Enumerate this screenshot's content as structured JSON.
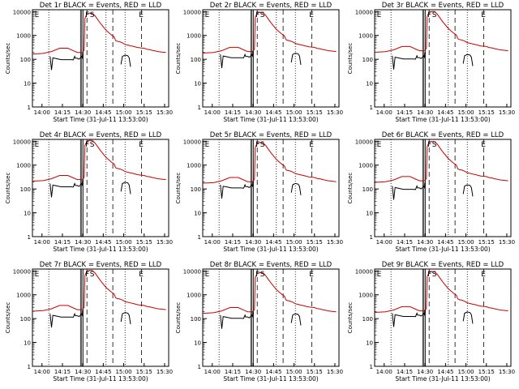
{
  "chart_data": [
    {
      "type": "line",
      "title": "Det 1r BLACK = Events, RED = LLD",
      "ylabel": "Counts/sec",
      "xlabel": "Start Time (31-Jul-11 13:53:00)",
      "x_ticks": [
        "14:00",
        "14:15",
        "14:30",
        "14:45",
        "15:00",
        "15:15",
        "15:30"
      ],
      "x_range_min": [
        -7,
        100
      ],
      "y_ticks": [
        "1",
        "10",
        "100",
        "1000",
        "10000"
      ],
      "y_scale": "log",
      "ylim": [
        1,
        12000
      ],
      "markers": [
        "E",
        "F",
        "S",
        "E"
      ],
      "series": [
        {
          "name": "BLACK = Events",
          "color": "#000000"
        },
        {
          "name": "RED = LLD",
          "color": "#cc0000"
        }
      ]
    },
    {
      "type": "line",
      "title": "Det 2r BLACK = Events, RED = LLD",
      "ylabel": "Counts/sec",
      "xlabel": "Start Time (31-Jul-11 13:53:00)",
      "x_ticks": [
        "14:00",
        "14:15",
        "14:30",
        "14:45",
        "15:00",
        "15:15",
        "15:30"
      ],
      "x_range_min": [
        -7,
        100
      ],
      "y_ticks": [
        "1",
        "10",
        "100",
        "1000",
        "10000"
      ],
      "y_scale": "log",
      "ylim": [
        1,
        12000
      ],
      "markers": [
        "E",
        "F",
        "S",
        "E"
      ],
      "series": [
        {
          "name": "BLACK = Events",
          "color": "#000000"
        },
        {
          "name": "RED = LLD",
          "color": "#cc0000"
        }
      ]
    },
    {
      "type": "line",
      "title": "Det 3r BLACK = Events, RED = LLD",
      "ylabel": "Counts/sec",
      "xlabel": "Start Time (31-Jul-11 13:53:00)",
      "x_ticks": [
        "14:00",
        "14:15",
        "14:30",
        "14:45",
        "15:00",
        "15:15",
        "15:30"
      ],
      "x_range_min": [
        -7,
        100
      ],
      "y_ticks": [
        "1",
        "10",
        "100",
        "1000",
        "10000"
      ],
      "y_scale": "log",
      "ylim": [
        1,
        12000
      ],
      "markers": [
        "E",
        "F",
        "S",
        "E"
      ],
      "series": [
        {
          "name": "BLACK = Events",
          "color": "#000000"
        },
        {
          "name": "RED = LLD",
          "color": "#cc0000"
        }
      ]
    },
    {
      "type": "line",
      "title": "Det 4r BLACK = Events, RED = LLD",
      "ylabel": "Counts/sec",
      "xlabel": "Start Time (31-Jul-11 13:53:00)",
      "x_ticks": [
        "14:00",
        "14:15",
        "14:30",
        "14:45",
        "15:00",
        "15:15",
        "15:30"
      ],
      "x_range_min": [
        -7,
        100
      ],
      "y_ticks": [
        "1",
        "10",
        "100",
        "1000",
        "10000"
      ],
      "y_scale": "log",
      "ylim": [
        1,
        12000
      ],
      "markers": [
        "E",
        "F",
        "S",
        "E"
      ],
      "series": [
        {
          "name": "BLACK = Events",
          "color": "#000000"
        },
        {
          "name": "RED = LLD",
          "color": "#cc0000"
        }
      ]
    },
    {
      "type": "line",
      "title": "Det 5r BLACK = Events, RED = LLD",
      "ylabel": "Counts/sec",
      "xlabel": "Start Time (31-Jul-11 13:53:00)",
      "x_ticks": [
        "14:00",
        "14:15",
        "14:30",
        "14:45",
        "15:00",
        "15:15",
        "15:30"
      ],
      "x_range_min": [
        -7,
        100
      ],
      "y_ticks": [
        "1",
        "10",
        "100",
        "1000",
        "10000"
      ],
      "y_scale": "log",
      "ylim": [
        1,
        12000
      ],
      "markers": [
        "E",
        "F",
        "S",
        "E"
      ],
      "series": [
        {
          "name": "BLACK = Events",
          "color": "#000000"
        },
        {
          "name": "RED = LLD",
          "color": "#cc0000"
        }
      ]
    },
    {
      "type": "line",
      "title": "Det 6r BLACK = Events, RED = LLD",
      "ylabel": "Counts/sec",
      "xlabel": "Start Time (31-Jul-11 13:53:00)",
      "x_ticks": [
        "14:00",
        "14:15",
        "14:30",
        "14:45",
        "15:00",
        "15:15",
        "15:30"
      ],
      "x_range_min": [
        -7,
        100
      ],
      "y_ticks": [
        "1",
        "10",
        "100",
        "1000",
        "10000"
      ],
      "y_scale": "log",
      "ylim": [
        1,
        12000
      ],
      "markers": [
        "E",
        "F",
        "S",
        "E"
      ],
      "series": [
        {
          "name": "BLACK = Events",
          "color": "#000000"
        },
        {
          "name": "RED = LLD",
          "color": "#cc0000"
        }
      ]
    },
    {
      "type": "line",
      "title": "Det 7r BLACK = Events, RED = LLD",
      "ylabel": "Counts/sec",
      "xlabel": "Start Time (31-Jul-11 13:53:00)",
      "x_ticks": [
        "14:00",
        "14:15",
        "14:30",
        "14:45",
        "15:00",
        "15:15",
        "15:30"
      ],
      "x_range_min": [
        -7,
        100
      ],
      "y_ticks": [
        "1",
        "10",
        "100",
        "1000",
        "10000"
      ],
      "y_scale": "log",
      "ylim": [
        1,
        12000
      ],
      "markers": [
        "E",
        "F",
        "S",
        "E"
      ],
      "series": [
        {
          "name": "BLACK = Events",
          "color": "#000000"
        },
        {
          "name": "RED = LLD",
          "color": "#cc0000"
        }
      ]
    },
    {
      "type": "line",
      "title": "Det 8r BLACK = Events, RED = LLD",
      "ylabel": "Counts/sec",
      "xlabel": "Start Time (31-Jul-11 13:53:00)",
      "x_ticks": [
        "14:00",
        "14:15",
        "14:30",
        "14:45",
        "15:00",
        "15:15",
        "15:30"
      ],
      "x_range_min": [
        -7,
        100
      ],
      "y_ticks": [
        "1",
        "10",
        "100",
        "1000",
        "10000"
      ],
      "y_scale": "log",
      "ylim": [
        1,
        12000
      ],
      "markers": [
        "E",
        "F",
        "S",
        "E"
      ],
      "series": [
        {
          "name": "BLACK = Events",
          "color": "#000000"
        },
        {
          "name": "RED = LLD",
          "color": "#cc0000"
        }
      ]
    },
    {
      "type": "line",
      "title": "Det 9r BLACK = Events, RED = LLD",
      "ylabel": "Counts/sec",
      "xlabel": "Start Time (31-Jul-11 13:53:00)",
      "x_ticks": [
        "14:00",
        "14:15",
        "14:30",
        "14:45",
        "15:00",
        "15:15",
        "15:30"
      ],
      "x_range_min": [
        -7,
        100
      ],
      "y_ticks": [
        "1",
        "10",
        "100",
        "1000",
        "10000"
      ],
      "y_scale": "log",
      "ylim": [
        1,
        12000
      ],
      "markers": [
        "E",
        "F",
        "S",
        "E"
      ],
      "series": [
        {
          "name": "BLACK = Events",
          "color": "#000000"
        },
        {
          "name": "RED = LLD",
          "color": "#cc0000"
        }
      ]
    }
  ]
}
